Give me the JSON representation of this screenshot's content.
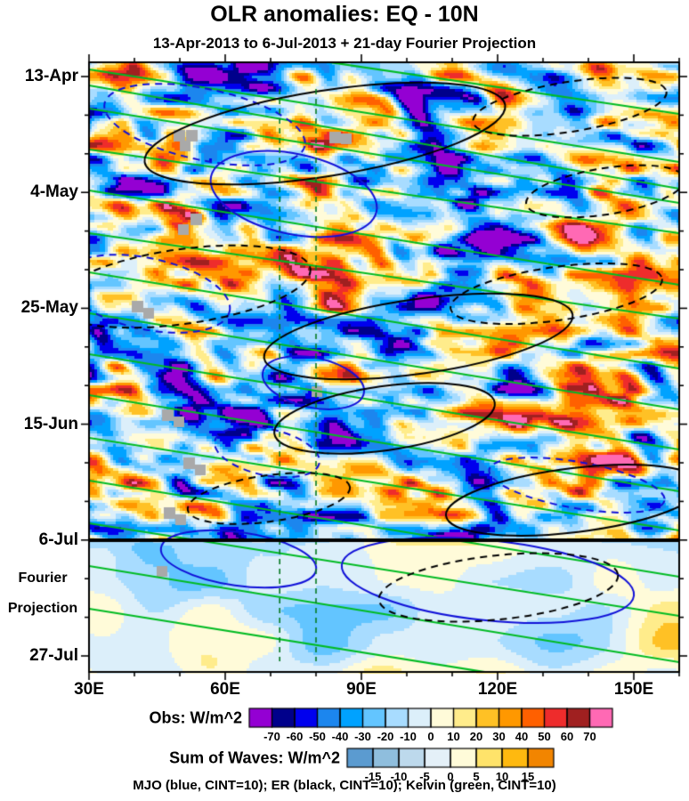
{
  "header": {
    "title": "OLR anomalies: EQ - 10N",
    "subtitle": "13-Apr-2013 to 6-Jul-2013 + 21-day Fourier Projection"
  },
  "chart_data": {
    "type": "heatmap",
    "title": "OLR anomalies: EQ - 10N",
    "subtitle": "13-Apr-2013 to 6-Jul-2013 + 21-day Fourier Projection",
    "description": "Time-longitude (Hovmoller) plot of observed OLR anomalies averaged EQ-10N with a 21-day Fourier projection below the 6-Jul divider; MJO, ER and Kelvin wave filtered contours overlaid",
    "x_axis": {
      "ticks": [
        "30E",
        "60E",
        "90E",
        "120E",
        "150E"
      ],
      "tick_values": [
        30,
        60,
        90,
        120,
        150
      ],
      "range": [
        30,
        160
      ],
      "minor_step_deg": 10
    },
    "y_axis": {
      "ticks": [
        "13-Apr",
        "4-May",
        "25-May",
        "15-Jun",
        "6-Jul",
        "27-Jul"
      ],
      "projection_note": [
        "Fourier",
        "Projection"
      ],
      "major_step_days": 21,
      "minor_step_days": 7,
      "direction": "time-increases-downward"
    },
    "obs_colorbar": {
      "label": "Obs: W/m^2",
      "tick_values": [
        -70,
        -60,
        -50,
        -40,
        -30,
        -20,
        -10,
        0,
        10,
        20,
        30,
        40,
        50,
        60,
        70
      ],
      "colors": [
        "#9400D3",
        "#00008B",
        "#0000EE",
        "#1C86EE",
        "#00A2FF",
        "#63C5FF",
        "#A8DCFF",
        "#DCEFFA",
        "#FFFBD9",
        "#FFEC8B",
        "#FFC125",
        "#FF9800",
        "#FF6000",
        "#EE2C2C",
        "#A02020",
        "#FF69B4"
      ]
    },
    "waves_colorbar": {
      "label": "Sum of Waves: W/m^2",
      "tick_values": [
        -15,
        -10,
        -5,
        0,
        5,
        10,
        15
      ],
      "colors": [
        "#5B9BD0",
        "#8FBEDD",
        "#BDD9EC",
        "#E4F0F8",
        "#FFFBD9",
        "#FFE36A",
        "#FFB90F",
        "#F28500"
      ]
    },
    "legend_note": "MJO (blue, CINT=10); ER (black, CINT=10); Kelvin (green, CINT=10)",
    "overlays": {
      "mjo": {
        "color": "#1010D8",
        "cint": 10,
        "style": "blue solid/dashed ellipses, eastward tilt"
      },
      "er": {
        "color": "#000000",
        "cint": 10,
        "style": "black solid/dashed ellipses, westward tilt"
      },
      "kelvin": {
        "color": "#00BB22",
        "cint": 10,
        "style": "green lines, fast eastward tilt"
      },
      "forecast_divider_date": "6-Jul",
      "dashed_vertical_lon": [
        72,
        80
      ],
      "dashed_vertical_color": "#067A20",
      "missing_data_color": "#A9A9A9"
    }
  }
}
